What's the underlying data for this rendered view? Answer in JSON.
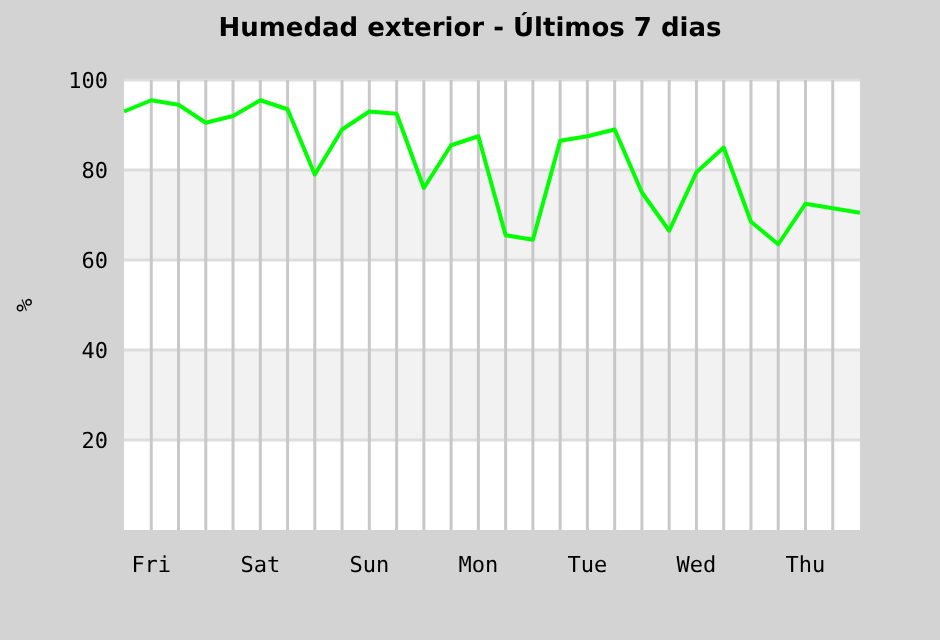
{
  "chart_data": {
    "type": "line",
    "title": "Humedad exterior - Últimos 7 dias",
    "ylabel": "%",
    "categories": [
      null,
      "Fri",
      null,
      null,
      null,
      "Sat",
      null,
      null,
      null,
      "Sun",
      null,
      null,
      null,
      "Mon",
      null,
      null,
      null,
      "Tue",
      null,
      null,
      null,
      "Wed",
      null,
      null,
      null,
      "Thu",
      null,
      null
    ],
    "series": [
      {
        "color": "#00ff00",
        "values": [
          93,
          95.5,
          94.5,
          90.5,
          92,
          95.5,
          93.5,
          79,
          89,
          93,
          92.5,
          76,
          85.5,
          87.5,
          65.5,
          64.5,
          86.5,
          87.5,
          89,
          75,
          66.5,
          79.5,
          85,
          68.5,
          63.5,
          72.5,
          71.5,
          70.5
        ]
      }
    ],
    "ylim": [
      0,
      100
    ],
    "yticks": [
      20,
      40,
      60,
      80,
      100
    ],
    "bands": [
      {
        "axis": "y",
        "from": 20,
        "to": 40,
        "color": "#f2f2f2"
      },
      {
        "axis": "y",
        "from": 60,
        "to": 80,
        "color": "#f2f2f2"
      }
    ],
    "grid": true,
    "line_style": "solid",
    "marker": "none"
  }
}
